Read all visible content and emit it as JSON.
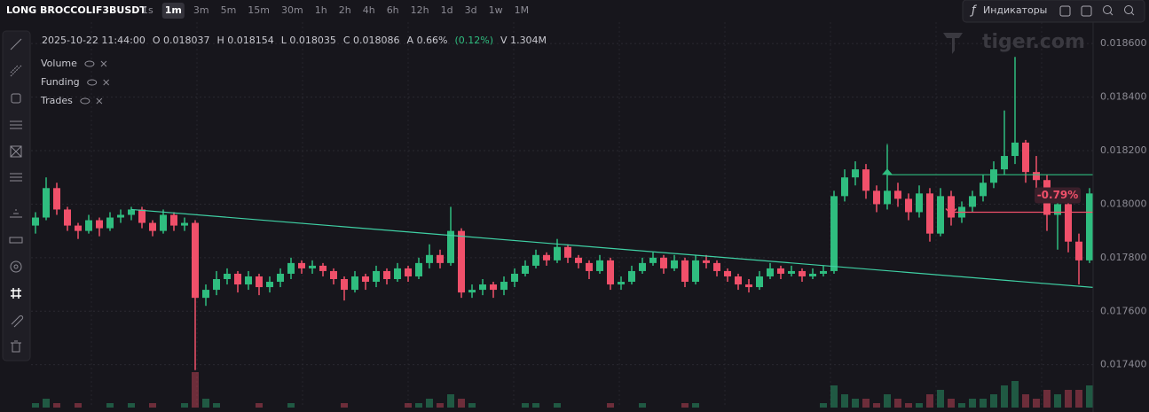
{
  "toolbar": {
    "symbol": "LONG BROCCOLIF3BUSDT",
    "intervals": [
      "1s",
      "1m",
      "3m",
      "5m",
      "15m",
      "30m",
      "1h",
      "2h",
      "4h",
      "6h",
      "12h",
      "1d",
      "3d",
      "1w",
      "1M"
    ],
    "active_interval": "1m",
    "indicators": "Индикаторы"
  },
  "header": {
    "items": [
      "2025-10-22 11:44:00",
      "O 0.018037",
      "H 0.018154",
      "L 0.018035",
      "C 0.018086",
      "A 0.66%",
      "(0.12%)",
      "V 1.304M"
    ]
  },
  "legend": [
    "Volume",
    "Funding",
    "Trades"
  ],
  "watermark": "tiger.com",
  "chart_data": {
    "type": "candlestick",
    "up_color": "#2fbd7f",
    "down_color": "#f0506a",
    "ylim": [
      0.01724,
      0.01868
    ],
    "yticks": [
      {
        "value": 0.0174,
        "label": "0.017400"
      },
      {
        "value": 0.0176,
        "label": "0.017600"
      },
      {
        "value": 0.0178,
        "label": "0.017800"
      },
      {
        "value": 0.018,
        "label": "0.018000"
      },
      {
        "value": 0.0182,
        "label": "0.018200"
      },
      {
        "value": 0.0184,
        "label": "0.018400"
      },
      {
        "value": 0.0186,
        "label": "0.018600"
      }
    ],
    "grid": true,
    "candles": [
      [
        0.01792,
        0.01797,
        0.01789,
        0.01795
      ],
      [
        0.01795,
        0.0181,
        0.01794,
        0.01806
      ],
      [
        0.01806,
        0.01808,
        0.01796,
        0.01798
      ],
      [
        0.01798,
        0.01799,
        0.0179,
        0.01792
      ],
      [
        0.01792,
        0.01793,
        0.01787,
        0.0179
      ],
      [
        0.0179,
        0.01796,
        0.01789,
        0.01794
      ],
      [
        0.01794,
        0.01795,
        0.01788,
        0.01791
      ],
      [
        0.01791,
        0.01797,
        0.0179,
        0.01795
      ],
      [
        0.01795,
        0.01798,
        0.01793,
        0.01796
      ],
      [
        0.01796,
        0.01799,
        0.01794,
        0.01798
      ],
      [
        0.01798,
        0.01799,
        0.01791,
        0.01793
      ],
      [
        0.01793,
        0.01794,
        0.01788,
        0.0179
      ],
      [
        0.0179,
        0.01798,
        0.01789,
        0.01796
      ],
      [
        0.01796,
        0.01797,
        0.0179,
        0.01792
      ],
      [
        0.01792,
        0.01795,
        0.0179,
        0.01793
      ],
      [
        0.01793,
        0.01794,
        0.01738,
        0.01765
      ],
      [
        0.01765,
        0.0177,
        0.01762,
        0.01768
      ],
      [
        0.01768,
        0.01775,
        0.01766,
        0.01772
      ],
      [
        0.01772,
        0.01776,
        0.0177,
        0.01774
      ],
      [
        0.01774,
        0.01775,
        0.01767,
        0.0177
      ],
      [
        0.0177,
        0.01775,
        0.01768,
        0.01773
      ],
      [
        0.01773,
        0.01774,
        0.01766,
        0.01769
      ],
      [
        0.01769,
        0.01773,
        0.01767,
        0.01771
      ],
      [
        0.01771,
        0.01776,
        0.01769,
        0.01774
      ],
      [
        0.01774,
        0.0178,
        0.01772,
        0.01778
      ],
      [
        0.01778,
        0.01779,
        0.01774,
        0.01776
      ],
      [
        0.01776,
        0.01779,
        0.01774,
        0.01777
      ],
      [
        0.01777,
        0.01778,
        0.01773,
        0.01775
      ],
      [
        0.01775,
        0.01776,
        0.0177,
        0.01772
      ],
      [
        0.01772,
        0.01773,
        0.01764,
        0.01768
      ],
      [
        0.01768,
        0.01775,
        0.01767,
        0.01773
      ],
      [
        0.01773,
        0.01774,
        0.01768,
        0.01771
      ],
      [
        0.01771,
        0.01777,
        0.01769,
        0.01775
      ],
      [
        0.01775,
        0.01776,
        0.0177,
        0.01772
      ],
      [
        0.01772,
        0.01778,
        0.01771,
        0.01776
      ],
      [
        0.01776,
        0.01777,
        0.01771,
        0.01773
      ],
      [
        0.01773,
        0.0178,
        0.01772,
        0.01778
      ],
      [
        0.01778,
        0.01785,
        0.01776,
        0.01781
      ],
      [
        0.01781,
        0.01783,
        0.01776,
        0.01778
      ],
      [
        0.01778,
        0.01799,
        0.01777,
        0.0179
      ],
      [
        0.0179,
        0.01791,
        0.01765,
        0.01767
      ],
      [
        0.01767,
        0.0177,
        0.01765,
        0.01768
      ],
      [
        0.01768,
        0.01772,
        0.01766,
        0.0177
      ],
      [
        0.0177,
        0.01771,
        0.01765,
        0.01768
      ],
      [
        0.01768,
        0.01773,
        0.01766,
        0.01771
      ],
      [
        0.01771,
        0.01776,
        0.01769,
        0.01774
      ],
      [
        0.01774,
        0.01779,
        0.01773,
        0.01777
      ],
      [
        0.01777,
        0.01783,
        0.01776,
        0.01781
      ],
      [
        0.01781,
        0.01782,
        0.01777,
        0.01779
      ],
      [
        0.01779,
        0.01787,
        0.01778,
        0.01784
      ],
      [
        0.01784,
        0.01785,
        0.01778,
        0.0178
      ],
      [
        0.0178,
        0.01781,
        0.01776,
        0.01778
      ],
      [
        0.01778,
        0.01779,
        0.01772,
        0.01775
      ],
      [
        0.01775,
        0.01781,
        0.01774,
        0.01779
      ],
      [
        0.01779,
        0.0178,
        0.01768,
        0.0177
      ],
      [
        0.0177,
        0.01773,
        0.01768,
        0.01771
      ],
      [
        0.01771,
        0.01777,
        0.0177,
        0.01775
      ],
      [
        0.01775,
        0.0178,
        0.01774,
        0.01778
      ],
      [
        0.01778,
        0.01782,
        0.01777,
        0.0178
      ],
      [
        0.0178,
        0.01781,
        0.01774,
        0.01776
      ],
      [
        0.01776,
        0.01781,
        0.01775,
        0.01779
      ],
      [
        0.01779,
        0.0178,
        0.01769,
        0.01771
      ],
      [
        0.01771,
        0.01781,
        0.0177,
        0.01779
      ],
      [
        0.01779,
        0.01781,
        0.01776,
        0.01778
      ],
      [
        0.01778,
        0.01779,
        0.01773,
        0.01775
      ],
      [
        0.01775,
        0.01776,
        0.01771,
        0.01773
      ],
      [
        0.01773,
        0.01774,
        0.01768,
        0.0177
      ],
      [
        0.0177,
        0.01772,
        0.01767,
        0.01769
      ],
      [
        0.01769,
        0.01775,
        0.01768,
        0.01773
      ],
      [
        0.01773,
        0.01778,
        0.01772,
        0.01776
      ],
      [
        0.01776,
        0.01777,
        0.01772,
        0.01774
      ],
      [
        0.01774,
        0.01777,
        0.01773,
        0.01775
      ],
      [
        0.01775,
        0.01776,
        0.01771,
        0.01773
      ],
      [
        0.01773,
        0.01776,
        0.01772,
        0.01774
      ],
      [
        0.01774,
        0.01777,
        0.01773,
        0.01775
      ],
      [
        0.01775,
        0.01805,
        0.01774,
        0.01803
      ],
      [
        0.01803,
        0.01813,
        0.01801,
        0.0181
      ],
      [
        0.0181,
        0.01816,
        0.01807,
        0.01813
      ],
      [
        0.01813,
        0.01815,
        0.01802,
        0.01805
      ],
      [
        0.01805,
        0.01807,
        0.01797,
        0.018
      ],
      [
        0.018,
        0.01822,
        0.01798,
        0.01805
      ],
      [
        0.01805,
        0.01808,
        0.01799,
        0.01802
      ],
      [
        0.01802,
        0.01804,
        0.01794,
        0.01797
      ],
      [
        0.01797,
        0.01807,
        0.01795,
        0.01804
      ],
      [
        0.01804,
        0.01806,
        0.01786,
        0.01789
      ],
      [
        0.01789,
        0.01806,
        0.01788,
        0.01803
      ],
      [
        0.01803,
        0.01805,
        0.01792,
        0.01795
      ],
      [
        0.01795,
        0.01801,
        0.01793,
        0.01799
      ],
      [
        0.01799,
        0.01805,
        0.01797,
        0.01803
      ],
      [
        0.01803,
        0.01811,
        0.01801,
        0.01808
      ],
      [
        0.01808,
        0.01816,
        0.01806,
        0.01813
      ],
      [
        0.01813,
        0.01835,
        0.01811,
        0.01818
      ],
      [
        0.01818,
        0.01855,
        0.01815,
        0.01823
      ],
      [
        0.01823,
        0.01824,
        0.01808,
        0.01812
      ],
      [
        0.01812,
        0.01818,
        0.01806,
        0.01809
      ],
      [
        0.01809,
        0.01811,
        0.0179,
        0.01796
      ],
      [
        0.01796,
        0.01804,
        0.01783,
        0.018
      ],
      [
        0.018,
        0.01802,
        0.01782,
        0.01786
      ],
      [
        0.01786,
        0.01789,
        0.0177,
        0.01779
      ],
      [
        0.01779,
        0.01806,
        0.01778,
        0.01804
      ]
    ],
    "volume": [
      2,
      3,
      2,
      1,
      2,
      1,
      1,
      2,
      1,
      2,
      1,
      2,
      1,
      1,
      2,
      9,
      3,
      2,
      1,
      1,
      1,
      2,
      1,
      1,
      2,
      1,
      1,
      1,
      1,
      2,
      1,
      1,
      1,
      1,
      1,
      2,
      2,
      3,
      2,
      4,
      3,
      2,
      1,
      1,
      1,
      1,
      2,
      2,
      1,
      2,
      1,
      1,
      1,
      1,
      2,
      1,
      1,
      2,
      1,
      1,
      1,
      2,
      2,
      1,
      1,
      1,
      1,
      1,
      1,
      1,
      1,
      1,
      1,
      1,
      2,
      6,
      4,
      3,
      3,
      2,
      4,
      3,
      2,
      2,
      4,
      5,
      3,
      2,
      3,
      3,
      4,
      6,
      7,
      4,
      3,
      5,
      4,
      5,
      5,
      6
    ],
    "lines": [
      {
        "kind": "trend",
        "color": "#3fd0a4",
        "points": [
          [
            9,
            0.01798
          ],
          [
            99,
            0.01769
          ]
        ]
      },
      {
        "kind": "horizontal",
        "color": "#2fbd7f",
        "points": [
          [
            80,
            0.01811
          ],
          [
            99,
            0.01811
          ]
        ]
      },
      {
        "kind": "horizontal",
        "color": "#f0506a",
        "points": [
          [
            86,
            0.01797
          ],
          [
            99,
            0.01797
          ]
        ],
        "label": "-0.79%"
      }
    ]
  }
}
